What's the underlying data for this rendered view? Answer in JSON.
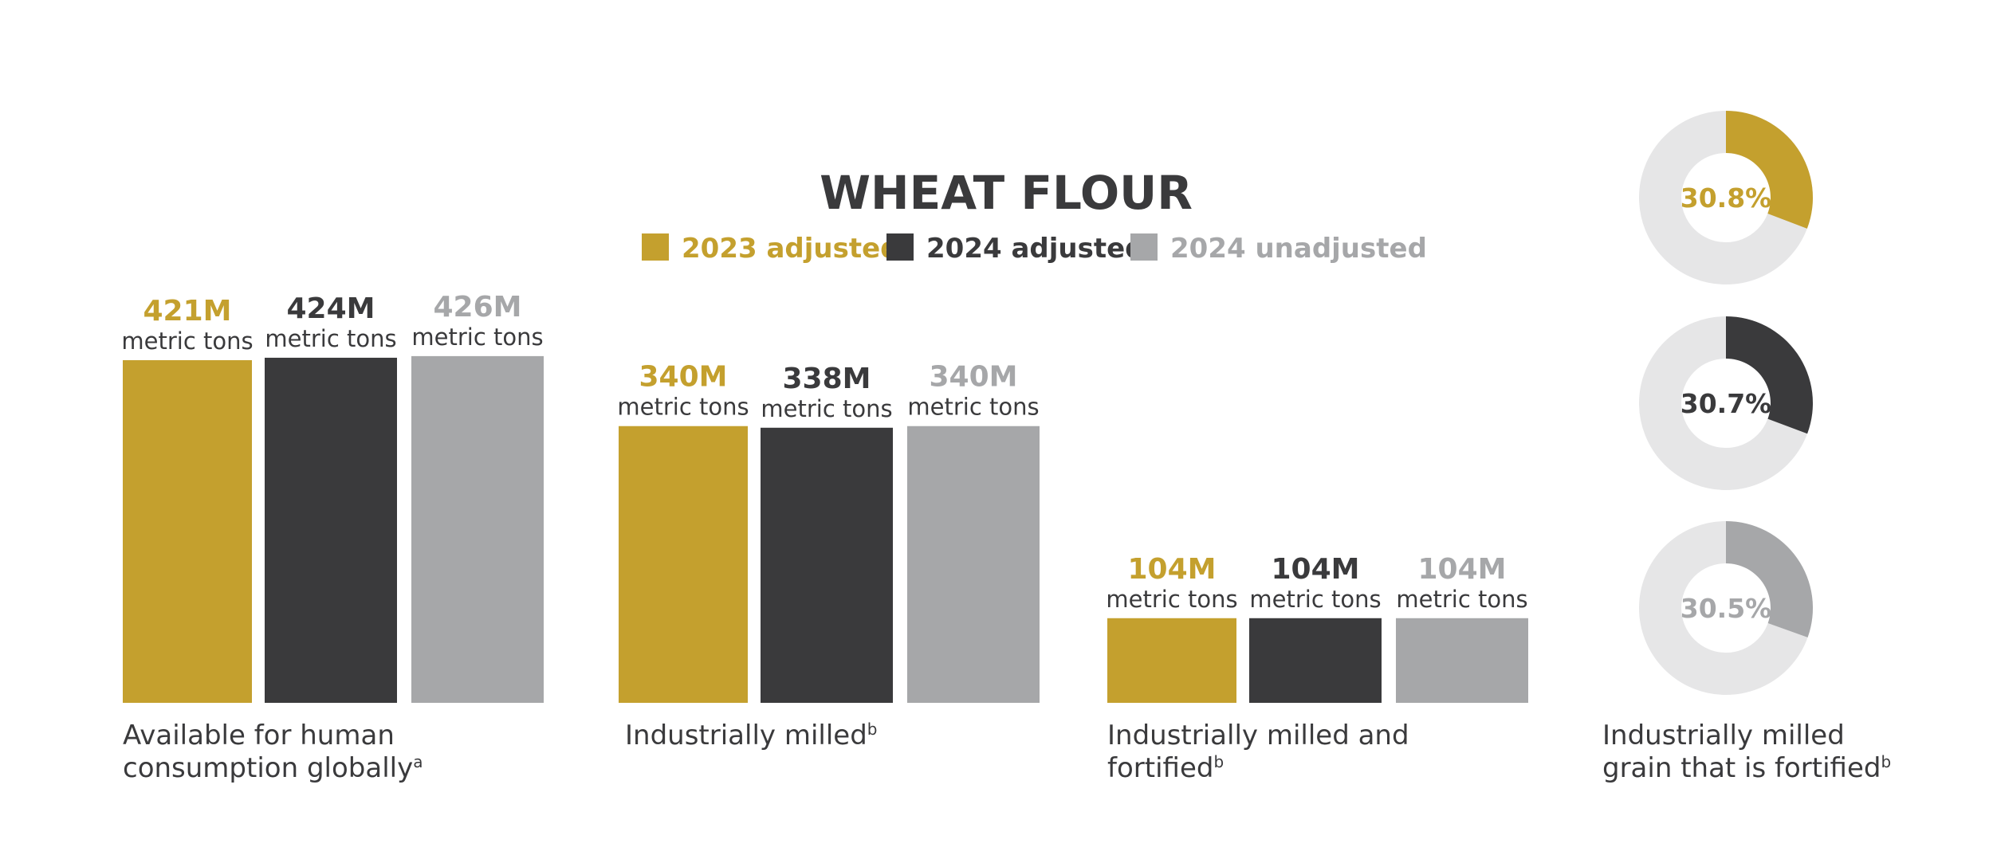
{
  "title": "WHEAT FLOUR",
  "legend": [
    {
      "label": "2023 adjusted",
      "color": "#C4A02E"
    },
    {
      "label": "2024 adjusted",
      "color": "#3A3A3C"
    },
    {
      "label": "2024 unadjusted",
      "color": "#A6A7A9"
    }
  ],
  "colors": {
    "light_ring": "#E6E6E7",
    "text_dark": "#3A3A3C"
  },
  "unit_label": "metric tons",
  "chart_data": [
    {
      "type": "bar",
      "groups": [
        {
          "category_lines": [
            "Available for human",
            "consumption globally"
          ],
          "footnote": "a",
          "values": [
            421,
            424,
            426
          ],
          "value_labels": [
            "421M",
            "424M",
            "426M"
          ]
        },
        {
          "category_lines": [
            "Industrially milled"
          ],
          "footnote": "b",
          "values": [
            340,
            338,
            340
          ],
          "value_labels": [
            "340M",
            "338M",
            "340M"
          ]
        },
        {
          "category_lines": [
            "Industrially milled and",
            "fortified"
          ],
          "footnote": "b",
          "values": [
            104,
            104,
            104
          ],
          "value_labels": [
            "104M",
            "104M",
            "104M"
          ]
        }
      ],
      "series": [
        {
          "name": "2023 adjusted"
        },
        {
          "name": "2024 adjusted"
        },
        {
          "name": "2024 unadjusted"
        }
      ],
      "unit": "metric tons"
    },
    {
      "type": "pie",
      "style": "donut",
      "category_lines": [
        "Industrially milled",
        "grain that is fortified"
      ],
      "footnote": "b",
      "slices": [
        {
          "series": "2023 adjusted",
          "value": 30.8,
          "label": "30.8%"
        },
        {
          "series": "2024 adjusted",
          "value": 30.7,
          "label": "30.7%"
        },
        {
          "series": "2024 unadjusted",
          "value": 30.5,
          "label": "30.5%"
        }
      ]
    }
  ]
}
